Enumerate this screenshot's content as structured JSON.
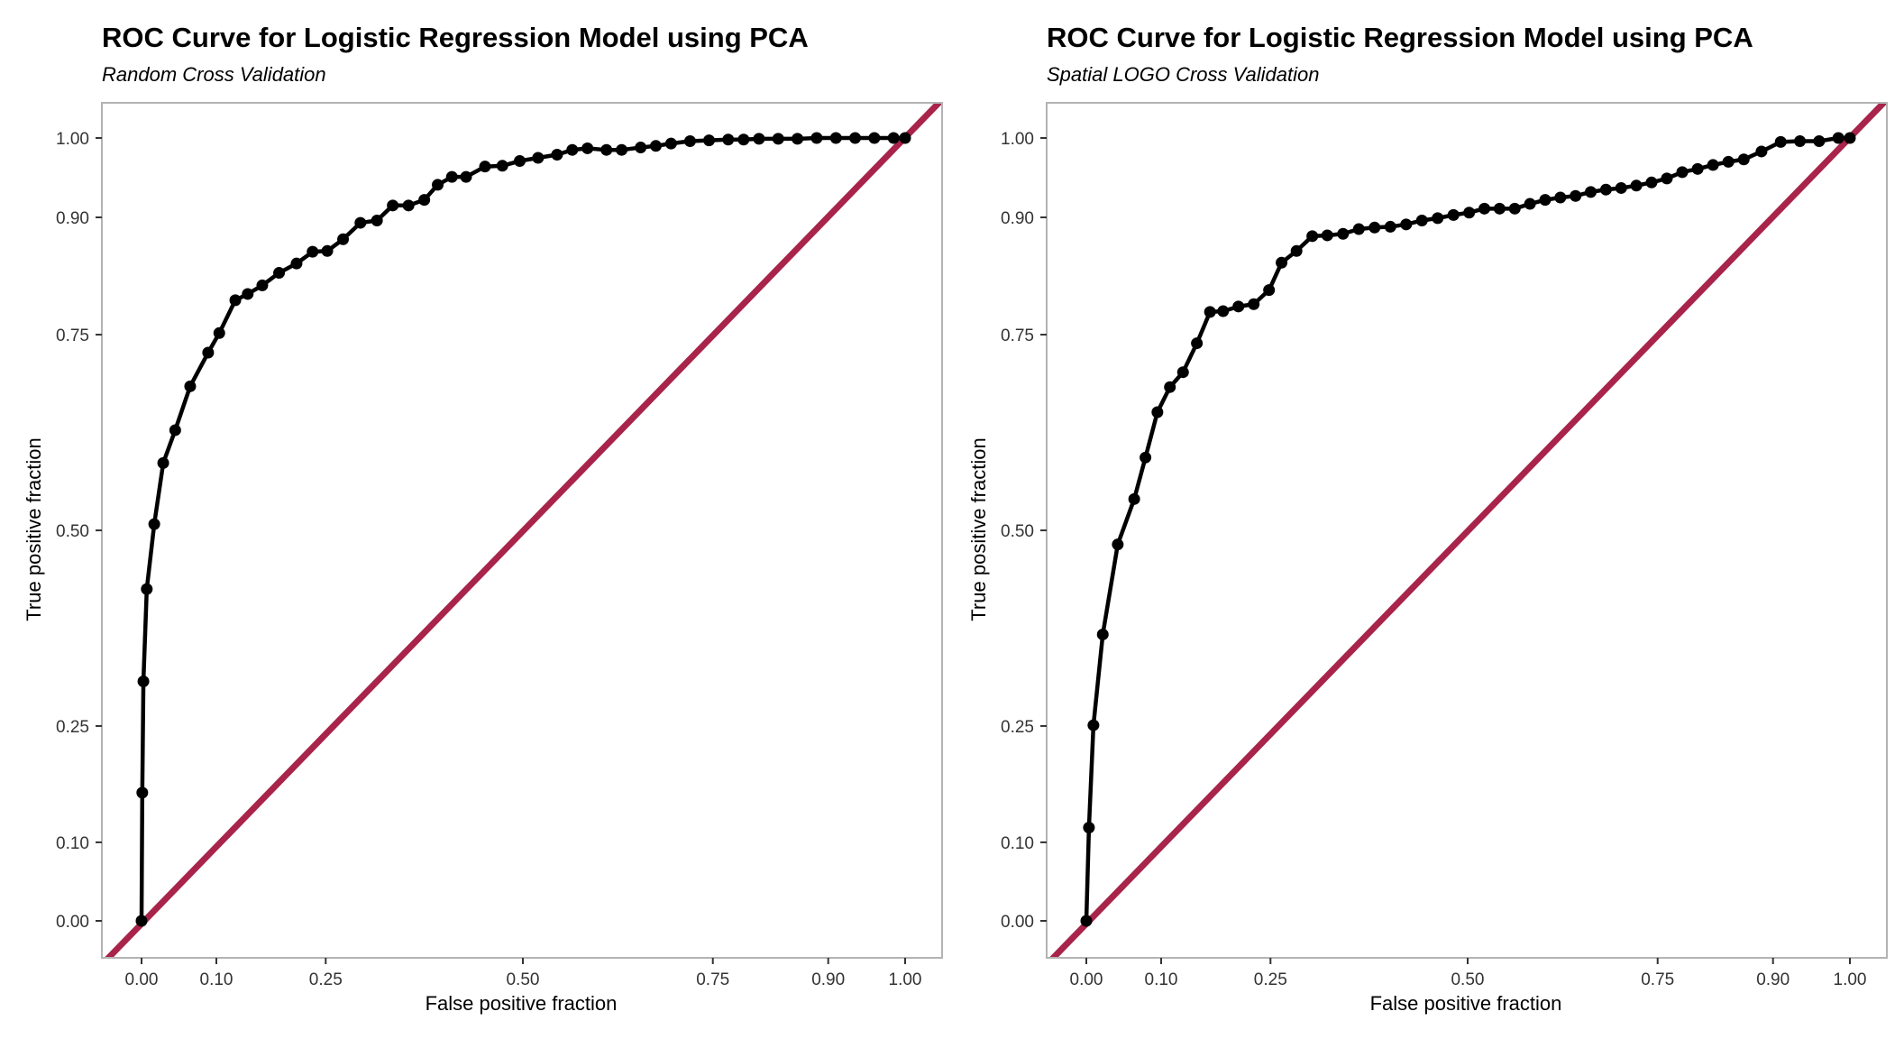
{
  "colors": {
    "curve": "#000000",
    "reference": "#A8244A",
    "frame": "#b3b3b3",
    "tick_text": "#333333"
  },
  "chart_data": [
    {
      "type": "line",
      "title": "ROC Curve for Logistic Regression Model using PCA",
      "subtitle": "Random Cross Validation",
      "xlabel": "False positive fraction",
      "ylabel": "True positive fraction",
      "xticks": [
        0.0,
        0.1,
        0.25,
        0.5,
        0.75,
        0.9,
        1.0
      ],
      "yticks": [
        0.0,
        0.1,
        0.25,
        0.5,
        0.75,
        0.9,
        1.0
      ],
      "xtick_labels": [
        "0.00",
        "0.10",
        "0.25",
        "0.50",
        "0.75",
        "0.90",
        "1.00"
      ],
      "ytick_labels": [
        "0.00",
        "0.10",
        "0.25",
        "0.50",
        "0.75",
        "0.90",
        "1.00"
      ],
      "grid": false,
      "scale": "sqrt-like",
      "series": [
        {
          "style": "line+points",
          "x": [
            0.0,
            0.001,
            0.0025,
            0.007,
            0.017,
            0.029,
            0.045,
            0.065,
            0.089,
            0.104,
            0.126,
            0.143,
            0.163,
            0.186,
            0.21,
            0.232,
            0.252,
            0.272,
            0.294,
            0.315,
            0.335,
            0.355,
            0.375,
            0.392,
            0.41,
            0.428,
            0.452,
            0.474,
            0.496,
            0.52,
            0.545,
            0.565,
            0.585,
            0.61,
            0.63,
            0.655,
            0.675,
            0.695,
            0.72,
            0.745,
            0.77,
            0.79,
            0.81,
            0.835,
            0.86,
            0.885,
            0.91,
            0.935,
            0.96,
            0.985,
            1.0
          ],
          "y": [
            0.0,
            0.164,
            0.307,
            0.425,
            0.508,
            0.586,
            0.628,
            0.684,
            0.727,
            0.752,
            0.794,
            0.802,
            0.813,
            0.829,
            0.841,
            0.856,
            0.857,
            0.872,
            0.893,
            0.896,
            0.915,
            0.915,
            0.922,
            0.941,
            0.951,
            0.951,
            0.964,
            0.965,
            0.971,
            0.975,
            0.979,
            0.985,
            0.987,
            0.985,
            0.985,
            0.988,
            0.99,
            0.993,
            0.996,
            0.997,
            0.998,
            0.998,
            0.999,
            0.999,
            0.999,
            1.0,
            1.0,
            1.0,
            1.0,
            1.0,
            1.0
          ]
        },
        {
          "style": "diagonal",
          "x": [
            0,
            1
          ],
          "y": [
            0,
            1
          ]
        }
      ]
    },
    {
      "type": "line",
      "title": "ROC Curve for Logistic Regression Model using PCA",
      "subtitle": "Spatial LOGO Cross Validation",
      "xlabel": "False positive fraction",
      "ylabel": "True positive fraction",
      "xticks": [
        0.0,
        0.1,
        0.25,
        0.5,
        0.75,
        0.9,
        1.0
      ],
      "yticks": [
        0.0,
        0.1,
        0.25,
        0.5,
        0.75,
        0.9,
        1.0
      ],
      "xtick_labels": [
        "0.00",
        "0.10",
        "0.25",
        "0.50",
        "0.75",
        "0.90",
        "1.00"
      ],
      "ytick_labels": [
        "0.00",
        "0.10",
        "0.25",
        "0.50",
        "0.75",
        "0.90",
        "1.00"
      ],
      "grid": false,
      "scale": "sqrt-like",
      "series": [
        {
          "style": "line+points",
          "x": [
            0.0,
            0.0035,
            0.0095,
            0.022,
            0.042,
            0.064,
            0.079,
            0.095,
            0.112,
            0.13,
            0.149,
            0.167,
            0.185,
            0.206,
            0.227,
            0.248,
            0.264,
            0.283,
            0.303,
            0.322,
            0.342,
            0.362,
            0.382,
            0.402,
            0.422,
            0.442,
            0.462,
            0.482,
            0.502,
            0.522,
            0.542,
            0.562,
            0.582,
            0.602,
            0.622,
            0.642,
            0.662,
            0.682,
            0.702,
            0.722,
            0.742,
            0.762,
            0.782,
            0.802,
            0.822,
            0.842,
            0.862,
            0.885,
            0.91,
            0.935,
            0.96,
            0.985,
            1.0
          ],
          "y": [
            0.0,
            0.119,
            0.251,
            0.367,
            0.482,
            0.54,
            0.593,
            0.651,
            0.683,
            0.702,
            0.739,
            0.779,
            0.78,
            0.786,
            0.789,
            0.807,
            0.842,
            0.857,
            0.876,
            0.877,
            0.879,
            0.885,
            0.887,
            0.888,
            0.891,
            0.896,
            0.899,
            0.903,
            0.906,
            0.911,
            0.911,
            0.911,
            0.917,
            0.922,
            0.925,
            0.927,
            0.932,
            0.935,
            0.937,
            0.94,
            0.944,
            0.949,
            0.957,
            0.961,
            0.966,
            0.97,
            0.973,
            0.983,
            0.995,
            0.996,
            0.996,
            1.0,
            1.0
          ]
        },
        {
          "style": "diagonal",
          "x": [
            0,
            1
          ],
          "y": [
            0,
            1
          ]
        }
      ]
    }
  ]
}
